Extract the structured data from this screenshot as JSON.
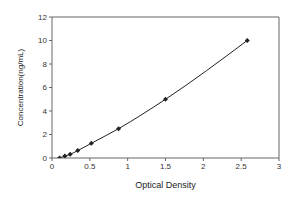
{
  "chart_data": {
    "type": "line",
    "x_label": "Optical Density",
    "y_label": "Concentration(ng/mL)",
    "x": [
      0.1,
      0.17,
      0.24,
      0.34,
      0.52,
      0.88,
      1.5,
      2.58
    ],
    "values": [
      0,
      0.16,
      0.31,
      0.63,
      1.25,
      2.5,
      5,
      10
    ],
    "color": "#222222",
    "marker": "diamond",
    "line_style": "solid",
    "xlim": [
      0,
      3
    ],
    "xticks": [
      0,
      0.5,
      1,
      1.5,
      2,
      2.5,
      3
    ],
    "ylim": [
      0,
      12
    ],
    "yticks": [
      0,
      2,
      4,
      6,
      8,
      10,
      12
    ],
    "grid": false
  }
}
